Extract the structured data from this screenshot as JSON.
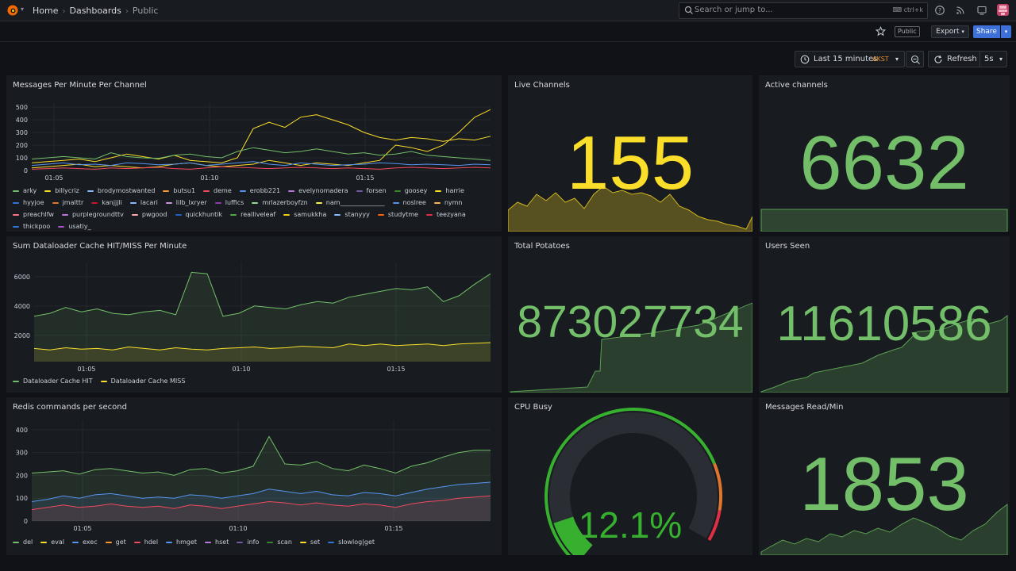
{
  "topbar": {
    "breadcrumbs": [
      "Home",
      "Dashboards",
      "Public"
    ],
    "search_placeholder": "Search or jump to...",
    "search_shortcut": "ctrl+k",
    "icons": [
      "grafana-logo-icon",
      "help-icon",
      "news-rss-icon",
      "kiosk-mode-icon",
      "user-avatar"
    ]
  },
  "toolbar": {
    "public_badge": "Public",
    "export_label": "Export",
    "share_label": "Share",
    "time_range": "Last 15 minutes",
    "timezone": "AKST",
    "refresh_label": "Refresh",
    "refresh_interval": "5s"
  },
  "colors": {
    "green": "#73bf69",
    "yellow": "#fade2a",
    "orange": "#ff9830",
    "red": "#f2495c",
    "blue": "#5794f2",
    "purple": "#b877d9",
    "background": "#111217",
    "panel": "#181b1f",
    "accent": "#3d71d9"
  },
  "panels": {
    "messages_per_minute": {
      "title": "Messages Per Minute Per Channel",
      "legend": [
        {
          "name": "arky",
          "color": "#73bf69"
        },
        {
          "name": "billycriz",
          "color": "#fade2a"
        },
        {
          "name": "brodymostwanted",
          "color": "#8ab8ff"
        },
        {
          "name": "butsu1",
          "color": "#ff9830"
        },
        {
          "name": "deme",
          "color": "#f2495c"
        },
        {
          "name": "erobb221",
          "color": "#5794f2"
        },
        {
          "name": "evelynomadera",
          "color": "#b877d9"
        },
        {
          "name": "forsen",
          "color": "#705da0"
        },
        {
          "name": "goosey",
          "color": "#37872d"
        },
        {
          "name": "harrie",
          "color": "#fade2a"
        },
        {
          "name": "hyyjoe",
          "color": "#3274d9"
        },
        {
          "name": "jmalttr",
          "color": "#e0752d"
        },
        {
          "name": "kanjjjli",
          "color": "#c4162a"
        },
        {
          "name": "lacari",
          "color": "#8ab8ff"
        },
        {
          "name": "lilb_lxryer",
          "color": "#ca95e5"
        },
        {
          "name": "luffics",
          "color": "#8f3bb8"
        },
        {
          "name": "mrlazerboyfzn",
          "color": "#96d98d"
        },
        {
          "name": "nam______________",
          "color": "#ffee52"
        },
        {
          "name": "noslree",
          "color": "#5794f2"
        },
        {
          "name": "nymn",
          "color": "#ffb357"
        },
        {
          "name": "preachlfw",
          "color": "#ff7383"
        },
        {
          "name": "purplegroundttv",
          "color": "#b877d9"
        },
        {
          "name": "pwgood",
          "color": "#ffa6b0"
        },
        {
          "name": "quickhuntik",
          "color": "#1f60c4"
        },
        {
          "name": "realliveleaf",
          "color": "#56a64b"
        },
        {
          "name": "samukkha",
          "color": "#f2cc0c"
        },
        {
          "name": "stanyyy",
          "color": "#8ab8ff"
        },
        {
          "name": "studytme",
          "color": "#fa6400"
        },
        {
          "name": "teezyana",
          "color": "#e02f44"
        },
        {
          "name": "thickpoo",
          "color": "#3274d9"
        },
        {
          "name": "usatiy_",
          "color": "#a352cc"
        }
      ]
    },
    "live_channels": {
      "title": "Live Channels",
      "value": "155",
      "color": "#fade2a"
    },
    "active_channels": {
      "title": "Active channels",
      "value": "6632",
      "color": "#73bf69"
    },
    "dataloader": {
      "title": "Sum Dataloader Cache HIT/MISS Per Minute",
      "legend": [
        {
          "name": "Dataloader Cache HIT",
          "color": "#73bf69"
        },
        {
          "name": "Dataloader Cache MISS",
          "color": "#fade2a"
        }
      ]
    },
    "total_potatoes": {
      "title": "Total Potatoes",
      "value": "873027734",
      "color": "#73bf69"
    },
    "users_seen": {
      "title": "Users Seen",
      "value": "11610586",
      "color": "#73bf69"
    },
    "redis": {
      "title": "Redis commands per second",
      "legend": [
        {
          "name": "del",
          "color": "#73bf69"
        },
        {
          "name": "eval",
          "color": "#fade2a"
        },
        {
          "name": "exec",
          "color": "#5794f2"
        },
        {
          "name": "get",
          "color": "#ff9830"
        },
        {
          "name": "hdel",
          "color": "#f2495c"
        },
        {
          "name": "hmget",
          "color": "#5794f2"
        },
        {
          "name": "hset",
          "color": "#b877d9"
        },
        {
          "name": "info",
          "color": "#705da0"
        },
        {
          "name": "scan",
          "color": "#37872d"
        },
        {
          "name": "set",
          "color": "#fade2a"
        },
        {
          "name": "slowlog|get",
          "color": "#3274d9"
        }
      ]
    },
    "cpu_busy": {
      "title": "CPU Busy",
      "value": "12.1%",
      "fraction": 0.121,
      "color": "#37b02f"
    },
    "messages_read": {
      "title": "Messages Read/Min",
      "value": "1853",
      "color": "#73bf69"
    }
  },
  "chart_data": [
    {
      "type": "line",
      "title": "Messages Per Minute Per Channel",
      "x_ticks": [
        "01:05",
        "01:10",
        "01:15"
      ],
      "y_ticks": [
        0,
        100,
        200,
        300,
        400,
        500
      ],
      "ylim": [
        0,
        500
      ],
      "series": [
        {
          "name": "billycriz",
          "values": [
            60,
            70,
            80,
            90,
            70,
            100,
            130,
            110,
            90,
            120,
            80,
            70,
            60,
            100,
            330,
            380,
            340,
            420,
            440,
            400,
            360,
            300,
            260,
            240,
            260,
            250,
            230,
            250,
            240,
            270
          ]
        },
        {
          "name": "harrie",
          "values": [
            20,
            30,
            40,
            50,
            30,
            40,
            30,
            20,
            30,
            50,
            60,
            40,
            30,
            40,
            50,
            80,
            60,
            40,
            60,
            50,
            40,
            60,
            80,
            200,
            180,
            150,
            200,
            300,
            420,
            480
          ]
        },
        {
          "name": "arky",
          "values": [
            90,
            100,
            110,
            100,
            90,
            140,
            110,
            100,
            95,
            120,
            130,
            110,
            100,
            150,
            180,
            160,
            140,
            150,
            170,
            150,
            130,
            140,
            120,
            130,
            150,
            120,
            110,
            100,
            90,
            80
          ]
        },
        {
          "name": "erobb221",
          "values": [
            40,
            50,
            60,
            45,
            50,
            40,
            60,
            55,
            45,
            50,
            60,
            40,
            50,
            60,
            70,
            50,
            40,
            60,
            50,
            40,
            45,
            50,
            60,
            55,
            45,
            50,
            45,
            40,
            50,
            45
          ]
        },
        {
          "name": "deme",
          "values": [
            10,
            15,
            20,
            15,
            10,
            20,
            15,
            20,
            25,
            15,
            10,
            20,
            30,
            25,
            20,
            15,
            20,
            25,
            20,
            15,
            20,
            15,
            10,
            20,
            25,
            20,
            15,
            20,
            25,
            20
          ]
        }
      ]
    },
    {
      "type": "area",
      "title": "Sum Dataloader Cache HIT/MISS Per Minute",
      "x_ticks": [
        "01:05",
        "01:10",
        "01:15"
      ],
      "y_ticks": [
        2000,
        4000,
        6000
      ],
      "ylim": [
        200,
        6700
      ],
      "series": [
        {
          "name": "Dataloader Cache HIT",
          "values": [
            3300,
            3500,
            3900,
            3600,
            3800,
            3500,
            3400,
            3600,
            3700,
            3400,
            6300,
            6200,
            3300,
            3500,
            4000,
            3900,
            3800,
            4100,
            4300,
            4200,
            4600,
            4800,
            5000,
            5200,
            5100,
            5300,
            4300,
            4700,
            5500,
            6200
          ]
        },
        {
          "name": "Dataloader Cache MISS",
          "values": [
            1100,
            1000,
            1150,
            1050,
            1100,
            1000,
            1200,
            1100,
            1000,
            1150,
            1050,
            1000,
            1100,
            1150,
            1200,
            1100,
            1150,
            1250,
            1200,
            1150,
            1400,
            1300,
            1400,
            1300,
            1350,
            1400,
            1300,
            1400,
            1450,
            1500
          ]
        }
      ]
    },
    {
      "type": "area",
      "title": "Redis commands per second",
      "x_ticks": [
        "01:05",
        "01:10",
        "01:15"
      ],
      "y_ticks": [
        0,
        100,
        200,
        300,
        400
      ],
      "ylim": [
        0,
        420
      ],
      "series": [
        {
          "name": "del",
          "values": [
            210,
            215,
            220,
            205,
            225,
            230,
            220,
            210,
            215,
            200,
            225,
            230,
            210,
            220,
            240,
            370,
            250,
            245,
            260,
            230,
            220,
            245,
            230,
            210,
            240,
            255,
            280,
            300,
            310,
            310
          ]
        },
        {
          "name": "exec",
          "values": [
            85,
            95,
            110,
            100,
            115,
            120,
            110,
            100,
            105,
            100,
            115,
            110,
            100,
            110,
            120,
            140,
            130,
            120,
            130,
            115,
            110,
            125,
            120,
            110,
            125,
            140,
            150,
            160,
            165,
            170
          ]
        },
        {
          "name": "hdel",
          "values": [
            50,
            60,
            70,
            60,
            65,
            75,
            65,
            60,
            65,
            55,
            70,
            65,
            55,
            65,
            75,
            85,
            80,
            70,
            80,
            70,
            65,
            75,
            70,
            60,
            75,
            85,
            90,
            100,
            105,
            110
          ]
        }
      ]
    },
    {
      "type": "gauge",
      "title": "CPU Busy",
      "value": 12.1,
      "unit": "%",
      "range": [
        0,
        100
      ]
    }
  ]
}
